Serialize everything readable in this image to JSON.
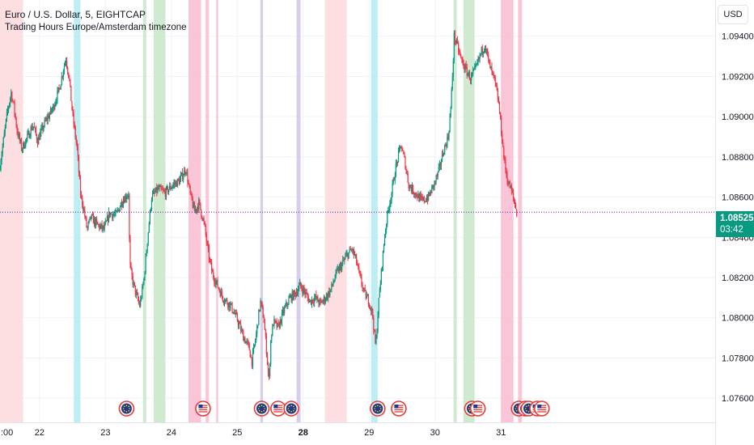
{
  "header": {
    "title": "Euro / U.S. Dollar, 5, EIGHTCAP",
    "indicator": "Trading Hours Europe/Amsterdam timezone"
  },
  "currency_button": "USD",
  "last_price": {
    "value": "1.08525",
    "countdown": "03:42",
    "color": "#089981"
  },
  "chart_data": {
    "type": "candlestick",
    "symbol": "EURUSD",
    "timeframe": "5",
    "ylim": [
      1.0748,
      1.0958
    ],
    "y_ticks": [
      "1.07600",
      "1.07800",
      "1.08000",
      "1.08200",
      "1.08400",
      "1.08600",
      "1.08800",
      "1.09000",
      "1.09200",
      "1.09400"
    ],
    "xlim": [
      21.0,
      31.85
    ],
    "x_ticks": [
      {
        "label": ":00",
        "pos": 21.0,
        "bold": false
      },
      {
        "label": "22",
        "pos": 21.6,
        "bold": false
      },
      {
        "label": "23",
        "pos": 22.6,
        "bold": false
      },
      {
        "label": "24",
        "pos": 23.6,
        "bold": false
      },
      {
        "label": "25",
        "pos": 24.6,
        "bold": false
      },
      {
        "label": "28",
        "pos": 25.6,
        "bold": true
      },
      {
        "label": "29",
        "pos": 26.6,
        "bold": false
      },
      {
        "label": "30",
        "pos": 27.6,
        "bold": false
      },
      {
        "label": "31",
        "pos": 28.6,
        "bold": false
      }
    ],
    "path": [
      [
        21.0,
        1.0876
      ],
      [
        21.06,
        1.089
      ],
      [
        21.11,
        1.0902
      ],
      [
        21.17,
        1.0912
      ],
      [
        21.21,
        1.0905
      ],
      [
        21.26,
        1.0893
      ],
      [
        21.33,
        1.0884
      ],
      [
        21.42,
        1.089
      ],
      [
        21.5,
        1.0896
      ],
      [
        21.57,
        1.0888
      ],
      [
        21.68,
        1.0897
      ],
      [
        21.8,
        1.0904
      ],
      [
        21.9,
        1.0914
      ],
      [
        21.97,
        1.0925
      ],
      [
        22.0,
        1.0929
      ],
      [
        22.05,
        1.0919
      ],
      [
        22.1,
        1.0901
      ],
      [
        22.17,
        1.0884
      ],
      [
        22.22,
        1.0862
      ],
      [
        22.28,
        1.0852
      ],
      [
        22.32,
        1.0844
      ],
      [
        22.38,
        1.085
      ],
      [
        22.48,
        1.0846
      ],
      [
        22.58,
        1.0844
      ],
      [
        22.66,
        1.0852
      ],
      [
        22.76,
        1.0851
      ],
      [
        22.85,
        1.0858
      ],
      [
        22.95,
        1.0862
      ],
      [
        22.97,
        1.0826
      ],
      [
        23.0,
        1.082
      ],
      [
        23.06,
        1.0812
      ],
      [
        23.12,
        1.0806
      ],
      [
        23.18,
        1.0818
      ],
      [
        23.24,
        1.084
      ],
      [
        23.3,
        1.086
      ],
      [
        23.4,
        1.0864
      ],
      [
        23.5,
        1.0862
      ],
      [
        23.62,
        1.0866
      ],
      [
        23.72,
        1.0868
      ],
      [
        23.82,
        1.0874
      ],
      [
        23.88,
        1.0862
      ],
      [
        23.95,
        1.0853
      ],
      [
        24.02,
        1.0857
      ],
      [
        24.1,
        1.0846
      ],
      [
        24.15,
        1.0834
      ],
      [
        24.22,
        1.0822
      ],
      [
        24.3,
        1.0816
      ],
      [
        24.38,
        1.081
      ],
      [
        24.5,
        1.0806
      ],
      [
        24.6,
        1.0799
      ],
      [
        24.7,
        1.079
      ],
      [
        24.78,
        1.0785
      ],
      [
        24.82,
        1.0778
      ],
      [
        24.88,
        1.079
      ],
      [
        24.95,
        1.0808
      ],
      [
        25.0,
        1.08
      ],
      [
        25.04,
        1.0785
      ],
      [
        25.08,
        1.0768
      ],
      [
        25.11,
        1.079
      ],
      [
        25.15,
        1.0798
      ],
      [
        25.22,
        1.0795
      ],
      [
        25.3,
        1.0803
      ],
      [
        25.4,
        1.081
      ],
      [
        25.48,
        1.0812
      ],
      [
        25.55,
        1.0816
      ],
      [
        25.62,
        1.0813
      ],
      [
        25.7,
        1.0808
      ],
      [
        25.78,
        1.081
      ],
      [
        25.86,
        1.0807
      ],
      [
        25.94,
        1.081
      ],
      [
        26.02,
        1.0814
      ],
      [
        26.1,
        1.0822
      ],
      [
        26.18,
        1.0826
      ],
      [
        26.26,
        1.0831
      ],
      [
        26.34,
        1.0834
      ],
      [
        26.4,
        1.0829
      ],
      [
        26.46,
        1.082
      ],
      [
        26.53,
        1.0812
      ],
      [
        26.6,
        1.0808
      ],
      [
        26.65,
        1.0802
      ],
      [
        26.7,
        1.0785
      ],
      [
        26.74,
        1.0806
      ],
      [
        26.8,
        1.0828
      ],
      [
        26.84,
        1.0842
      ],
      [
        26.88,
        1.0852
      ],
      [
        26.94,
        1.0862
      ],
      [
        27.0,
        1.0874
      ],
      [
        27.08,
        1.0886
      ],
      [
        27.14,
        1.0878
      ],
      [
        27.2,
        1.0866
      ],
      [
        27.3,
        1.0862
      ],
      [
        27.4,
        1.0858
      ],
      [
        27.5,
        1.086
      ],
      [
        27.58,
        1.0866
      ],
      [
        27.65,
        1.0872
      ],
      [
        27.72,
        1.0882
      ],
      [
        27.8,
        1.089
      ],
      [
        27.84,
        1.0905
      ],
      [
        27.87,
        1.0924
      ],
      [
        27.89,
        1.094
      ],
      [
        27.93,
        1.0936
      ],
      [
        28.0,
        1.0928
      ],
      [
        28.07,
        1.0923
      ],
      [
        28.14,
        1.0919
      ],
      [
        28.22,
        1.0924
      ],
      [
        28.3,
        1.0932
      ],
      [
        28.36,
        1.0936
      ],
      [
        28.42,
        1.0926
      ],
      [
        28.5,
        1.0918
      ],
      [
        28.56,
        1.0908
      ],
      [
        28.6,
        1.0895
      ],
      [
        28.65,
        1.0878
      ],
      [
        28.7,
        1.0868
      ],
      [
        28.75,
        1.0864
      ],
      [
        28.8,
        1.0858
      ],
      [
        28.84,
        1.0852
      ]
    ],
    "sessions": [
      {
        "start": 21.0,
        "end": 21.35,
        "color": "#fdd8dc"
      },
      {
        "start": 22.12,
        "end": 22.22,
        "color": "#b2ebf2"
      },
      {
        "start": 23.17,
        "end": 23.22,
        "color": "#c8e6c9"
      },
      {
        "start": 23.33,
        "end": 23.51,
        "color": "#c8e6c9"
      },
      {
        "start": 23.86,
        "end": 24.05,
        "color": "#f8bbd0"
      },
      {
        "start": 24.12,
        "end": 24.17,
        "color": "#f8bbd0"
      },
      {
        "start": 24.28,
        "end": 24.31,
        "color": "#f8bbd0"
      },
      {
        "start": 24.95,
        "end": 24.99,
        "color": "#d1c4e9"
      },
      {
        "start": 25.5,
        "end": 25.56,
        "color": "#d1c4e9"
      },
      {
        "start": 25.93,
        "end": 26.26,
        "color": "#fdd8dc"
      },
      {
        "start": 26.63,
        "end": 26.73,
        "color": "#b2ebf2"
      },
      {
        "start": 27.88,
        "end": 27.93,
        "color": "#c8e6c9"
      },
      {
        "start": 28.03,
        "end": 28.2,
        "color": "#c8e6c9"
      },
      {
        "start": 28.6,
        "end": 28.79,
        "color": "#f8bbd0"
      },
      {
        "start": 28.86,
        "end": 28.92,
        "color": "#f8bbd0"
      }
    ],
    "last_price": 1.08525,
    "colors": {
      "up": "#089981",
      "down": "#f23645",
      "price_line": "#7b1fa2"
    }
  },
  "events": [
    {
      "pos": 22.92,
      "type": "EU"
    },
    {
      "pos": 24.08,
      "type": "US"
    },
    {
      "pos": 24.97,
      "type": "EU"
    },
    {
      "pos": 25.22,
      "type": "US"
    },
    {
      "pos": 25.42,
      "type": "EU"
    },
    {
      "pos": 26.73,
      "type": "EU"
    },
    {
      "pos": 27.05,
      "type": "US"
    },
    {
      "pos": 28.16,
      "type": "EU"
    },
    {
      "pos": 28.25,
      "type": "US"
    },
    {
      "pos": 28.87,
      "type": "EU"
    },
    {
      "pos": 28.97,
      "type": "EU"
    },
    {
      "pos": 29.02,
      "type": "EU"
    },
    {
      "pos": 29.15,
      "type": "US"
    },
    {
      "pos": 29.22,
      "type": "US"
    }
  ]
}
